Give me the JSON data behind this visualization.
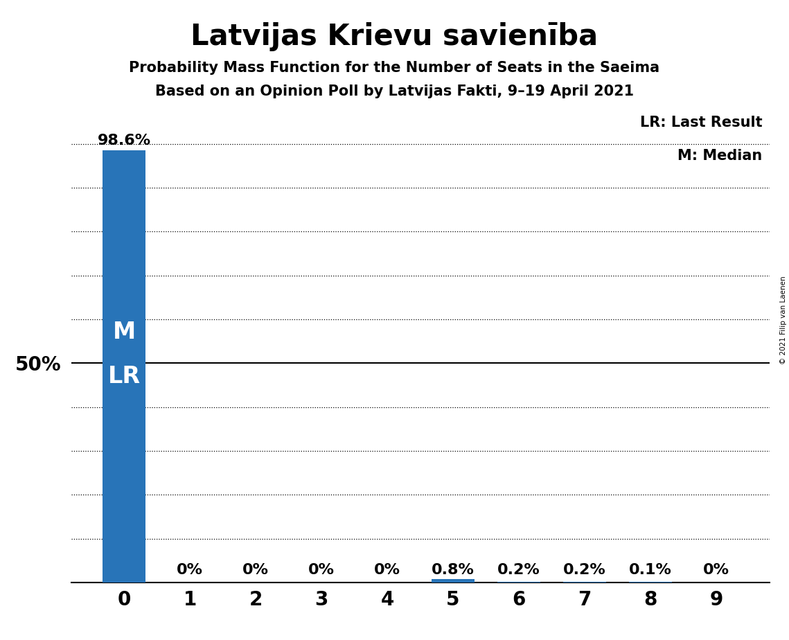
{
  "title": "Latvijas Krievu savienība",
  "subtitle1": "Probability Mass Function for the Number of Seats in the Saeima",
  "subtitle2": "Based on an Opinion Poll by Latvijas Fakti, 9–19 April 2021",
  "categories": [
    0,
    1,
    2,
    3,
    4,
    5,
    6,
    7,
    8,
    9
  ],
  "values": [
    0.986,
    0.0,
    0.0,
    0.0,
    0.0,
    0.008,
    0.002,
    0.002,
    0.001,
    0.0
  ],
  "bar_color": "#2874b8",
  "background_color": "#ffffff",
  "ylabel_50": "50%",
  "legend_lr": "LR: Last Result",
  "legend_m": "M: Median",
  "copyright": "© 2021 Filip van Laenen",
  "title_fontsize": 30,
  "subtitle_fontsize": 15,
  "bar_label_fontsize": 16,
  "tick_fontsize": 20,
  "ytick_fontsize": 20,
  "ylim": [
    0,
    1.08
  ]
}
